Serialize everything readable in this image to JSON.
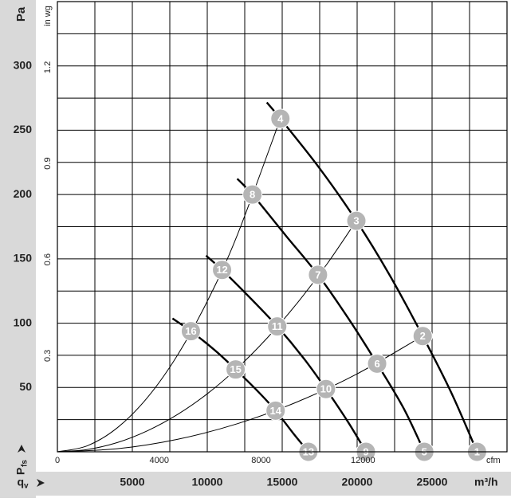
{
  "chart_data": {
    "type": "line",
    "y_label": "Pa",
    "y2_label": "in wg",
    "x2_label": "cfm",
    "x_unit_label": "m³/h",
    "x_label": {
      "main": "q",
      "sub": "v"
    },
    "y_axis_label": {
      "main": "P",
      "sub": "fs"
    },
    "xlim": [
      0,
      30000
    ],
    "xticks": [
      5000,
      10000,
      15000,
      20000,
      25000
    ],
    "x_grid": [
      2500,
      5000,
      7500,
      10000,
      12500,
      15000,
      17500,
      20000,
      22500,
      25000,
      27500
    ],
    "ylim": [
      0,
      350
    ],
    "yticks": [
      50,
      100,
      150,
      200,
      250,
      300
    ],
    "y_grid": [
      25,
      50,
      75,
      100,
      125,
      150,
      175,
      200,
      225,
      250,
      275,
      300,
      325
    ],
    "x2lim": [
      0,
      17657
    ],
    "x2ticks": [
      0,
      4000,
      8000,
      12000
    ],
    "y2lim": [
      0,
      1.405
    ],
    "y2ticks": [
      0.3,
      0.6,
      0.9,
      1.2
    ],
    "fan_curves": [
      {
        "x": [
          13973,
          14880,
          17493,
          19947,
          22187,
          24373,
          26293,
          28000
        ],
        "values": [
          271.6,
          259,
          220.4,
          179.6,
          137,
          90,
          45.7,
          0
        ]
      },
      {
        "x": [
          12000,
          13013,
          15253,
          17387,
          19413,
          21333,
          23093,
          24480
        ],
        "values": [
          212.3,
          200,
          167.9,
          137.6,
          103.7,
          68.5,
          34,
          0
        ]
      },
      {
        "x": [
          9920,
          10987,
          12907,
          14667,
          16427,
          17920,
          19413,
          20587
        ],
        "values": [
          152.5,
          141.4,
          119.1,
          97.5,
          72.8,
          48.8,
          22.8,
          0
        ]
      },
      {
        "x": [
          7680,
          8907,
          10560,
          11893,
          13333,
          14560,
          15787,
          16747
        ],
        "values": [
          103.7,
          93.8,
          78.4,
          64,
          47.5,
          32,
          13.6,
          0
        ]
      }
    ],
    "system_curves": [
      {
        "x": [
          0,
          2000,
          4000,
          6000,
          8000,
          10000,
          12000,
          14880
        ],
        "values": [
          0,
          4.7,
          18.7,
          42.1,
          74.9,
          117,
          168.4,
          259
        ]
      },
      {
        "x": [
          0,
          2000,
          4000,
          6000,
          8000,
          10000,
          12000,
          14000,
          16000,
          18000,
          19947
        ],
        "values": [
          0,
          1.8,
          7.2,
          16.3,
          28.9,
          45.1,
          65,
          88.5,
          115.6,
          146.2,
          179.6
        ]
      },
      {
        "x": [
          0,
          4000,
          8000,
          12000,
          16000,
          20000,
          24373
        ],
        "values": [
          0,
          2.4,
          9.7,
          21.8,
          38.8,
          60.6,
          90
        ]
      }
    ],
    "points": [
      {
        "label": "1",
        "x": 28000,
        "y": 0
      },
      {
        "label": "2",
        "x": 24373,
        "y": 90
      },
      {
        "label": "3",
        "x": 19947,
        "y": 179.6
      },
      {
        "label": "4",
        "x": 14880,
        "y": 259
      },
      {
        "label": "5",
        "x": 24480,
        "y": 0
      },
      {
        "label": "6",
        "x": 21333,
        "y": 68.5
      },
      {
        "label": "7",
        "x": 17387,
        "y": 137.6
      },
      {
        "label": "8",
        "x": 13013,
        "y": 200
      },
      {
        "label": "9",
        "x": 20587,
        "y": 0
      },
      {
        "label": "10",
        "x": 17920,
        "y": 48.8
      },
      {
        "label": "11",
        "x": 14667,
        "y": 97.5
      },
      {
        "label": "12",
        "x": 10987,
        "y": 141.4
      },
      {
        "label": "13",
        "x": 16747,
        "y": 0
      },
      {
        "label": "14",
        "x": 14560,
        "y": 32
      },
      {
        "label": "15",
        "x": 11893,
        "y": 64
      },
      {
        "label": "16",
        "x": 8907,
        "y": 93.8
      }
    ]
  }
}
